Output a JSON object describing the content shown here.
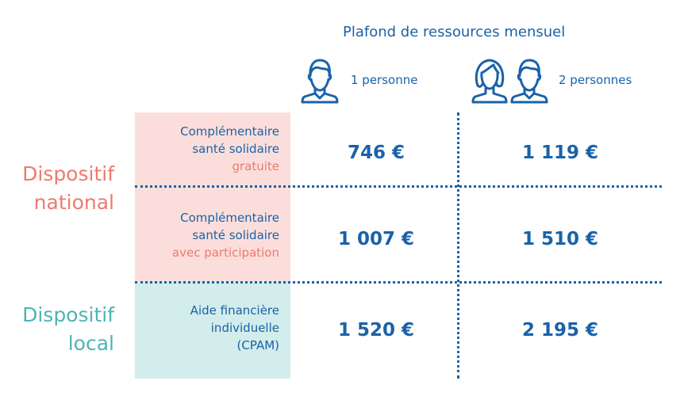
{
  "header": {
    "title": "Plafond de ressources mensuel"
  },
  "columns": [
    {
      "label": "1 personne",
      "icon": "man-icon"
    },
    {
      "label": "2 personnes",
      "icon": "woman-man-icon"
    }
  ],
  "groups": [
    {
      "label_line1": "Dispositif",
      "label_line2": "national",
      "color": "#ee7a6e"
    },
    {
      "label_line1": "Dispositif",
      "label_line2": "local",
      "color": "#4fb4b4"
    }
  ],
  "rows": [
    {
      "line1": "Complémentaire",
      "line2": "santé solidaire",
      "line3": "gratuite",
      "one_person": "746 €",
      "two_persons": "1 119 €"
    },
    {
      "line1": "Complémentaire",
      "line2": "santé solidaire",
      "line3": "avec participation",
      "one_person": "1 007 €",
      "two_persons": "1 510 €"
    },
    {
      "line1": "Aide financière",
      "line2": "individuelle",
      "line3": "(CPAM)",
      "one_person": "1 520 €",
      "two_persons": "2 195 €"
    }
  ],
  "colors": {
    "primary": "#1a62a8",
    "coral": "#ee7a6e",
    "teal": "#4fb4b4",
    "pink_bg": "#fbdedb",
    "teal_bg": "#d3ecec"
  }
}
